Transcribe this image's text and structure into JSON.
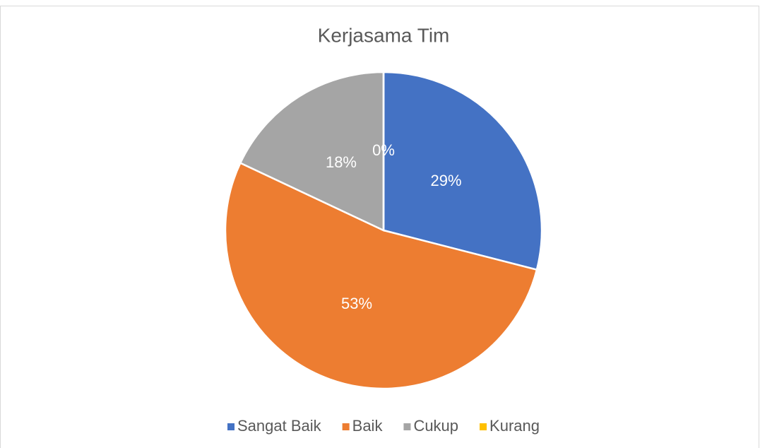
{
  "chart_data": {
    "type": "pie",
    "title": "Kerjasama Tim",
    "categories": [
      "Sangat Baik",
      "Baik",
      "Cukup",
      "Kurang"
    ],
    "values": [
      29,
      53,
      18,
      0
    ],
    "value_labels": [
      "29%",
      "53%",
      "18%",
      "0%"
    ],
    "colors": [
      "#4472c4",
      "#ed7d31",
      "#a5a5a5",
      "#ffc000"
    ],
    "legend": "bottom"
  }
}
